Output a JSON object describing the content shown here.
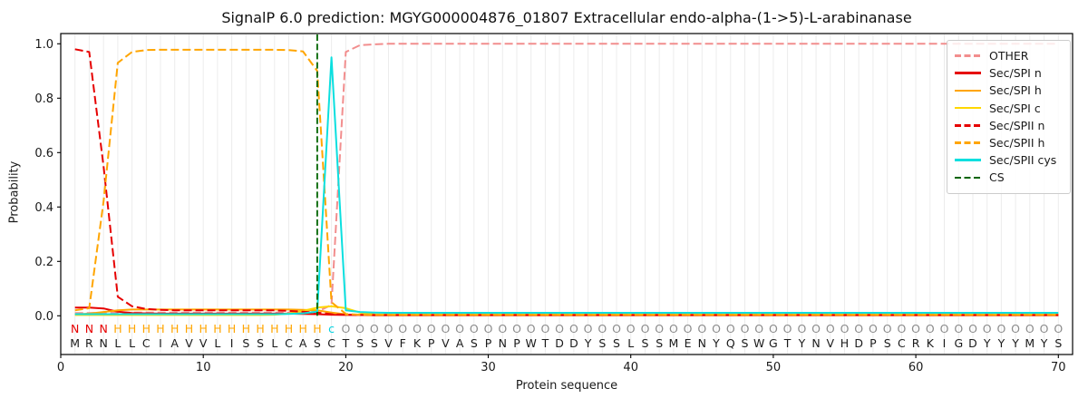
{
  "title": "SignalP 6.0 prediction: MGYG000004876_01807 Extracellular endo-alpha-(1->5)-L-arabinanase",
  "chart_data": {
    "type": "line",
    "title": "SignalP 6.0 prediction: MGYG000004876_01807 Extracellular endo-alpha-(1->5)-L-arabinanase",
    "xlabel": "Protein sequence",
    "ylabel": "Probability",
    "xlim": [
      0,
      71
    ],
    "ylim": [
      0,
      1.0
    ],
    "x_ticks": [
      0,
      10,
      20,
      30,
      40,
      50,
      60,
      70
    ],
    "y_tick_labels": [
      "0.0",
      "0.2",
      "0.4",
      "0.6",
      "0.8",
      "1.0"
    ],
    "y_tick_values": [
      0,
      0.2,
      0.4,
      0.6,
      0.8,
      1.0
    ],
    "grid": "vertical light line at every residue position",
    "legend_position": "upper right",
    "x_positions": "residues 1-70",
    "series": [
      {
        "name": "OTHER",
        "color": "#f28e8e",
        "dash": "dashed",
        "values": [
          0.01,
          0.01,
          0.011,
          0.012,
          0.012,
          0.012,
          0.012,
          0.012,
          0.012,
          0.012,
          0.012,
          0.012,
          0.012,
          0.012,
          0.012,
          0.012,
          0.012,
          0.015,
          0.04,
          0.97,
          0.995,
          0.998,
          1.0,
          1.0,
          1.0,
          1.0,
          1.0,
          1.0,
          1.0,
          1.0,
          1.0,
          1.0,
          1.0,
          1.0,
          1.0,
          1.0,
          1.0,
          1.0,
          1.0,
          1.0,
          1.0,
          1.0,
          1.0,
          1.0,
          1.0,
          1.0,
          1.0,
          1.0,
          1.0,
          1.0,
          1.0,
          1.0,
          1.0,
          1.0,
          1.0,
          1.0,
          1.0,
          1.0,
          1.0,
          1.0,
          1.0,
          1.0,
          1.0,
          1.0,
          1.0,
          1.0,
          1.0,
          1.0,
          1.0,
          1.0
        ]
      },
      {
        "name": "Sec/SPI n",
        "color": "#e60000",
        "dash": "solid",
        "values": [
          0.03,
          0.03,
          0.027,
          0.015,
          0.01,
          0.009,
          0.008,
          0.008,
          0.008,
          0.008,
          0.008,
          0.008,
          0.008,
          0.008,
          0.008,
          0.008,
          0.007,
          0.006,
          0.004,
          0.003,
          0.003,
          0.002,
          0.002,
          0.002,
          0.002,
          0.002,
          0.002,
          0.002,
          0.002,
          0.002,
          0.002,
          0.002,
          0.002,
          0.002,
          0.002,
          0.002,
          0.002,
          0.002,
          0.002,
          0.002,
          0.002,
          0.002,
          0.002,
          0.002,
          0.002,
          0.002,
          0.002,
          0.002,
          0.002,
          0.002,
          0.002,
          0.002,
          0.002,
          0.002,
          0.002,
          0.002,
          0.002,
          0.002,
          0.002,
          0.002,
          0.002,
          0.002,
          0.002,
          0.002,
          0.002,
          0.002,
          0.002,
          0.002,
          0.002,
          0.002
        ]
      },
      {
        "name": "Sec/SPI h",
        "color": "#ffa500",
        "dash": "solid",
        "values": [
          0.005,
          0.008,
          0.014,
          0.02,
          0.023,
          0.023,
          0.023,
          0.023,
          0.023,
          0.023,
          0.023,
          0.023,
          0.023,
          0.023,
          0.023,
          0.023,
          0.022,
          0.02,
          0.012,
          0.005,
          0.004,
          0.003,
          0.003,
          0.003,
          0.003,
          0.003,
          0.003,
          0.003,
          0.003,
          0.003,
          0.003,
          0.003,
          0.003,
          0.003,
          0.003,
          0.003,
          0.003,
          0.003,
          0.003,
          0.003,
          0.003,
          0.003,
          0.003,
          0.003,
          0.003,
          0.003,
          0.003,
          0.003,
          0.003,
          0.003,
          0.003,
          0.003,
          0.003,
          0.003,
          0.003,
          0.003,
          0.003,
          0.003,
          0.003,
          0.003,
          0.003,
          0.003,
          0.003,
          0.003,
          0.003,
          0.003,
          0.003,
          0.003,
          0.003,
          0.003
        ]
      },
      {
        "name": "Sec/SPI c",
        "color": "#ffd700",
        "dash": "solid",
        "values": [
          0.003,
          0.003,
          0.003,
          0.003,
          0.003,
          0.003,
          0.003,
          0.003,
          0.003,
          0.003,
          0.003,
          0.003,
          0.003,
          0.003,
          0.004,
          0.008,
          0.018,
          0.03,
          0.035,
          0.028,
          0.012,
          0.005,
          0.004,
          0.004,
          0.004,
          0.004,
          0.004,
          0.004,
          0.004,
          0.004,
          0.004,
          0.004,
          0.004,
          0.004,
          0.004,
          0.004,
          0.004,
          0.004,
          0.004,
          0.004,
          0.004,
          0.004,
          0.004,
          0.004,
          0.004,
          0.004,
          0.004,
          0.004,
          0.004,
          0.004,
          0.004,
          0.004,
          0.004,
          0.004,
          0.004,
          0.004,
          0.004,
          0.004,
          0.004,
          0.004,
          0.004,
          0.004,
          0.004,
          0.004,
          0.004,
          0.004,
          0.004,
          0.004,
          0.004,
          0.004
        ]
      },
      {
        "name": "Sec/SPII n",
        "color": "#e60000",
        "dash": "dashed",
        "values": [
          0.98,
          0.97,
          0.55,
          0.07,
          0.035,
          0.025,
          0.022,
          0.02,
          0.02,
          0.02,
          0.02,
          0.02,
          0.02,
          0.02,
          0.02,
          0.018,
          0.015,
          0.012,
          0.006,
          0.004,
          0.003,
          0.003,
          0.003,
          0.003,
          0.003,
          0.003,
          0.003,
          0.003,
          0.003,
          0.003,
          0.003,
          0.003,
          0.003,
          0.003,
          0.003,
          0.003,
          0.003,
          0.003,
          0.003,
          0.003,
          0.003,
          0.003,
          0.003,
          0.003,
          0.003,
          0.003,
          0.003,
          0.003,
          0.003,
          0.003,
          0.003,
          0.003,
          0.003,
          0.003,
          0.003,
          0.003,
          0.003,
          0.003,
          0.003,
          0.003,
          0.003,
          0.003,
          0.003,
          0.003,
          0.003,
          0.003,
          0.003,
          0.003,
          0.003,
          0.003
        ]
      },
      {
        "name": "Sec/SPII h",
        "color": "#ffa500",
        "dash": "dashed",
        "values": [
          0.02,
          0.028,
          0.42,
          0.93,
          0.97,
          0.977,
          0.978,
          0.978,
          0.978,
          0.978,
          0.978,
          0.978,
          0.978,
          0.978,
          0.978,
          0.977,
          0.972,
          0.9,
          0.05,
          0.007,
          0.004,
          0.003,
          0.003,
          0.003,
          0.003,
          0.003,
          0.003,
          0.003,
          0.003,
          0.003,
          0.003,
          0.003,
          0.003,
          0.003,
          0.003,
          0.003,
          0.003,
          0.003,
          0.003,
          0.003,
          0.003,
          0.003,
          0.003,
          0.003,
          0.003,
          0.003,
          0.003,
          0.003,
          0.003,
          0.003,
          0.003,
          0.003,
          0.003,
          0.003,
          0.003,
          0.003,
          0.003,
          0.003,
          0.003,
          0.003,
          0.003,
          0.003,
          0.003,
          0.003,
          0.003,
          0.003,
          0.003,
          0.003,
          0.003,
          0.003
        ]
      },
      {
        "name": "Sec/SPII cys",
        "color": "#0bdfdf",
        "dash": "solid",
        "values": [
          0.006,
          0.006,
          0.006,
          0.006,
          0.006,
          0.006,
          0.006,
          0.006,
          0.006,
          0.006,
          0.006,
          0.006,
          0.006,
          0.006,
          0.006,
          0.007,
          0.009,
          0.015,
          0.95,
          0.02,
          0.014,
          0.012,
          0.011,
          0.011,
          0.011,
          0.011,
          0.011,
          0.011,
          0.011,
          0.011,
          0.011,
          0.011,
          0.011,
          0.011,
          0.011,
          0.011,
          0.011,
          0.011,
          0.011,
          0.011,
          0.011,
          0.011,
          0.011,
          0.011,
          0.011,
          0.011,
          0.011,
          0.011,
          0.011,
          0.011,
          0.011,
          0.011,
          0.011,
          0.011,
          0.011,
          0.011,
          0.011,
          0.011,
          0.011,
          0.011,
          0.011,
          0.011,
          0.011,
          0.011,
          0.011,
          0.011,
          0.011,
          0.011,
          0.011,
          0.011
        ]
      }
    ],
    "cs_marker": {
      "name": "CS",
      "color": "#006400",
      "dash": "dashed",
      "x": 18
    },
    "sequence": {
      "residues": "MRNLLCIAVVLISSLCASCTSSVFKPVASPNPWTDDYSSLSSMENYQSWGTYNVHDPSCRKIGDYYYMYS",
      "annotation": "NNNHHHHHHHHHHHHHHHcOOOOOOOOOOOOOOOOOOOOOOOOOOOOOOOOOOOOOOOOOOOOOOOOOOO",
      "annotation_colors": {
        "N": "#e60000",
        "H": "#ffa500",
        "c": "#00d2e0",
        "O": "#8c8c8c"
      },
      "residue_color": "#1a1a1a"
    },
    "style": {
      "grid_color": "#ececec",
      "axis_color": "#000000",
      "tick_text_color": "#1a1a1a",
      "background": "#ffffff",
      "legend_border": "#cccccc"
    }
  }
}
